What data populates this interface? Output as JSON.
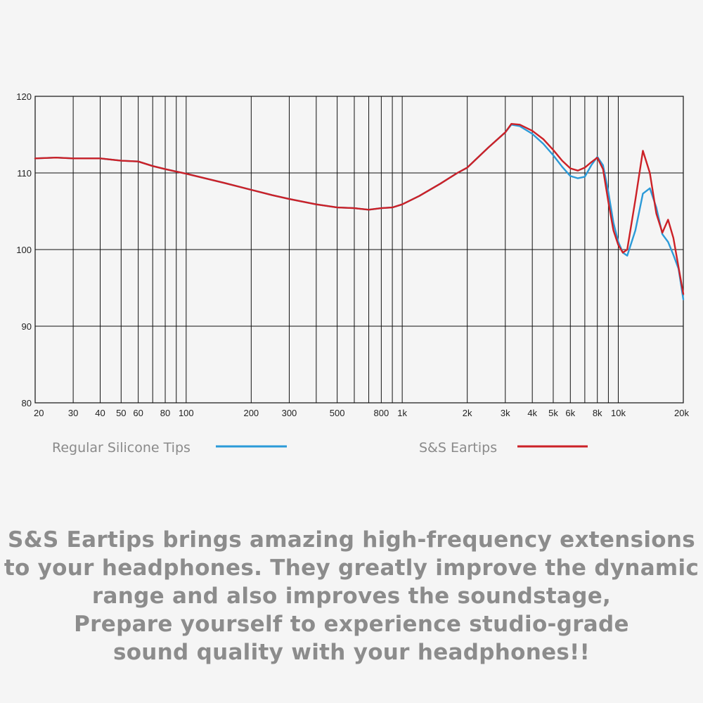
{
  "chart_data": {
    "type": "line",
    "x_scale": "log",
    "xlim": [
      20,
      20000
    ],
    "ylim": [
      80,
      120
    ],
    "grid": true,
    "y_ticks": [
      80,
      90,
      100,
      110,
      120
    ],
    "x_ticks": [
      {
        "value": 20,
        "label": "20"
      },
      {
        "value": 30,
        "label": "30"
      },
      {
        "value": 40,
        "label": "40"
      },
      {
        "value": 50,
        "label": "50"
      },
      {
        "value": 60,
        "label": "60"
      },
      {
        "value": 80,
        "label": "80"
      },
      {
        "value": 100,
        "label": "100"
      },
      {
        "value": 200,
        "label": "200"
      },
      {
        "value": 300,
        "label": "300"
      },
      {
        "value": 500,
        "label": "500"
      },
      {
        "value": 800,
        "label": "800"
      },
      {
        "value": 1000,
        "label": "1k"
      },
      {
        "value": 2000,
        "label": "2k"
      },
      {
        "value": 3000,
        "label": "3k"
      },
      {
        "value": 4000,
        "label": "4k"
      },
      {
        "value": 5000,
        "label": "5k"
      },
      {
        "value": 6000,
        "label": "6k"
      },
      {
        "value": 8000,
        "label": "8k"
      },
      {
        "value": 10000,
        "label": "10k"
      },
      {
        "value": 20000,
        "label": "20k"
      }
    ],
    "minor_x_grid": [
      70,
      90,
      400,
      600,
      700,
      900,
      7000,
      9000
    ],
    "legend_position": "bottom",
    "series": [
      {
        "name": "Regular Silicone Tips",
        "color": "#2b9ad8",
        "x": [
          20,
          25,
          30,
          40,
          50,
          60,
          70,
          80,
          100,
          150,
          200,
          250,
          300,
          400,
          500,
          600,
          700,
          800,
          900,
          1000,
          1200,
          1500,
          1800,
          2000,
          2500,
          3000,
          3200,
          3500,
          4000,
          4500,
          5000,
          5500,
          6000,
          6500,
          7000,
          7500,
          8000,
          8500,
          9000,
          9500,
          10000,
          10500,
          11000,
          12000,
          13000,
          14000,
          15000,
          16000,
          17000,
          18000,
          19000,
          20000
        ],
        "y": [
          111.9,
          112.0,
          111.9,
          111.9,
          111.6,
          111.5,
          110.9,
          110.5,
          109.9,
          108.7,
          107.8,
          107.1,
          106.6,
          105.9,
          105.5,
          105.4,
          105.2,
          105.4,
          105.5,
          105.9,
          107.0,
          108.6,
          110.0,
          110.7,
          113.3,
          115.3,
          116.3,
          116.1,
          115.1,
          113.8,
          112.3,
          110.8,
          109.6,
          109.3,
          109.5,
          111.0,
          112.1,
          111.0,
          107.5,
          103.5,
          101.0,
          99.6,
          99.2,
          102.5,
          107.3,
          108.0,
          105.5,
          102.0,
          101.0,
          99.3,
          97.5,
          93.5
        ]
      },
      {
        "name": "S&S Eartips",
        "color": "#cc2127",
        "x": [
          20,
          25,
          30,
          40,
          50,
          60,
          70,
          80,
          100,
          150,
          200,
          250,
          300,
          400,
          500,
          600,
          700,
          800,
          900,
          1000,
          1200,
          1500,
          1800,
          2000,
          2500,
          3000,
          3200,
          3500,
          4000,
          4500,
          5000,
          5500,
          6000,
          6500,
          7000,
          7500,
          8000,
          8500,
          9000,
          9500,
          10000,
          10500,
          11000,
          12000,
          13000,
          14000,
          15000,
          16000,
          17000,
          18000,
          19000,
          20000
        ],
        "y": [
          111.9,
          112.0,
          111.9,
          111.9,
          111.6,
          111.5,
          110.9,
          110.5,
          109.9,
          108.7,
          107.8,
          107.1,
          106.6,
          105.9,
          105.5,
          105.4,
          105.2,
          105.4,
          105.5,
          105.9,
          107.0,
          108.6,
          110.0,
          110.7,
          113.3,
          115.3,
          116.4,
          116.3,
          115.5,
          114.4,
          113.0,
          111.6,
          110.6,
          110.3,
          110.7,
          111.4,
          112.0,
          110.5,
          106.2,
          102.5,
          100.6,
          99.6,
          100.0,
          106.5,
          112.9,
          110.0,
          104.7,
          102.2,
          103.9,
          101.5,
          97.7,
          94.2
        ]
      }
    ]
  },
  "caption": [
    "S&S Eartips brings amazing high-frequency extensions",
    "to your headphones. They greatly improve the dynamic",
    "range and also improves the soundstage,",
    "Prepare yourself to experience studio-grade",
    "sound quality with your headphones!!"
  ]
}
